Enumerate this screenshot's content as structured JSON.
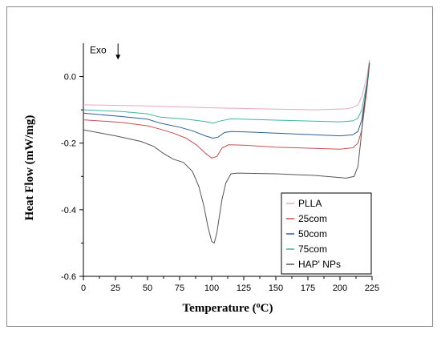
{
  "chart_data": {
    "type": "line",
    "xlabel": "Temperature (",
    "xlabel_unit": "o",
    "xlabel_suffix": "C)",
    "ylabel": "Heat Flow (mW/mg)",
    "xlim": [
      0,
      225
    ],
    "ylim": [
      -0.6,
      0.1
    ],
    "xticks": [
      0,
      25,
      50,
      75,
      100,
      125,
      150,
      175,
      200,
      225
    ],
    "yticks": [
      0.0,
      -0.2,
      -0.4,
      -0.6
    ],
    "ytick_labels": [
      "0.0",
      "-0.2",
      "-0.4",
      "-0.6"
    ],
    "annotation": "Exo",
    "annotation_x": 27,
    "annotation_y": 0.08,
    "legend_placement": "bottom-right",
    "series": [
      {
        "name": "PLLA",
        "color": "#e8a6c0",
        "points": [
          [
            0,
            -0.085
          ],
          [
            50,
            -0.088
          ],
          [
            100,
            -0.094
          ],
          [
            150,
            -0.098
          ],
          [
            180,
            -0.1
          ],
          [
            205,
            -0.097
          ],
          [
            210,
            -0.093
          ],
          [
            214,
            -0.085
          ],
          [
            217,
            -0.06
          ],
          [
            219,
            -0.03
          ],
          [
            221,
            0.0
          ],
          [
            223,
            0.05
          ]
        ]
      },
      {
        "name": "25com",
        "color": "#c94f4f",
        "points": [
          [
            0,
            -0.13
          ],
          [
            30,
            -0.138
          ],
          [
            50,
            -0.148
          ],
          [
            60,
            -0.158
          ],
          [
            70,
            -0.17
          ],
          [
            80,
            -0.185
          ],
          [
            88,
            -0.205
          ],
          [
            95,
            -0.23
          ],
          [
            100,
            -0.245
          ],
          [
            104,
            -0.24
          ],
          [
            108,
            -0.215
          ],
          [
            113,
            -0.205
          ],
          [
            125,
            -0.206
          ],
          [
            150,
            -0.212
          ],
          [
            200,
            -0.218
          ],
          [
            210,
            -0.214
          ],
          [
            214,
            -0.2
          ],
          [
            217,
            -0.16
          ],
          [
            219,
            -0.1
          ],
          [
            221,
            -0.04
          ],
          [
            223,
            0.04
          ]
        ]
      },
      {
        "name": "50com",
        "color": "#2e5f95",
        "points": [
          [
            0,
            -0.11
          ],
          [
            30,
            -0.12
          ],
          [
            50,
            -0.128
          ],
          [
            60,
            -0.14
          ],
          [
            75,
            -0.152
          ],
          [
            85,
            -0.163
          ],
          [
            95,
            -0.178
          ],
          [
            101,
            -0.185
          ],
          [
            105,
            -0.182
          ],
          [
            110,
            -0.168
          ],
          [
            115,
            -0.165
          ],
          [
            125,
            -0.166
          ],
          [
            150,
            -0.17
          ],
          [
            200,
            -0.178
          ],
          [
            210,
            -0.175
          ],
          [
            214,
            -0.165
          ],
          [
            217,
            -0.13
          ],
          [
            219,
            -0.08
          ],
          [
            221,
            -0.03
          ],
          [
            223,
            0.04
          ]
        ]
      },
      {
        "name": "75com",
        "color": "#3fb5a0",
        "points": [
          [
            0,
            -0.1
          ],
          [
            30,
            -0.105
          ],
          [
            50,
            -0.112
          ],
          [
            60,
            -0.122
          ],
          [
            80,
            -0.128
          ],
          [
            95,
            -0.135
          ],
          [
            101,
            -0.14
          ],
          [
            106,
            -0.134
          ],
          [
            115,
            -0.127
          ],
          [
            150,
            -0.131
          ],
          [
            200,
            -0.136
          ],
          [
            210,
            -0.133
          ],
          [
            214,
            -0.125
          ],
          [
            217,
            -0.1
          ],
          [
            219,
            -0.06
          ],
          [
            221,
            -0.02
          ],
          [
            223,
            0.045
          ]
        ]
      },
      {
        "name": "HAP' NPs",
        "color": "#555555",
        "points": [
          [
            0,
            -0.16
          ],
          [
            25,
            -0.178
          ],
          [
            45,
            -0.195
          ],
          [
            55,
            -0.21
          ],
          [
            62,
            -0.23
          ],
          [
            70,
            -0.248
          ],
          [
            78,
            -0.258
          ],
          [
            85,
            -0.285
          ],
          [
            90,
            -0.33
          ],
          [
            94,
            -0.39
          ],
          [
            97,
            -0.45
          ],
          [
            100,
            -0.495
          ],
          [
            102,
            -0.5
          ],
          [
            104,
            -0.47
          ],
          [
            106,
            -0.42
          ],
          [
            108,
            -0.37
          ],
          [
            111,
            -0.32
          ],
          [
            115,
            -0.292
          ],
          [
            120,
            -0.29
          ],
          [
            150,
            -0.292
          ],
          [
            180,
            -0.297
          ],
          [
            205,
            -0.305
          ],
          [
            211,
            -0.3
          ],
          [
            214,
            -0.27
          ],
          [
            216,
            -0.2
          ],
          [
            218,
            -0.12
          ],
          [
            220,
            -0.05
          ],
          [
            222,
            0.0
          ],
          [
            223,
            0.04
          ]
        ]
      }
    ]
  }
}
